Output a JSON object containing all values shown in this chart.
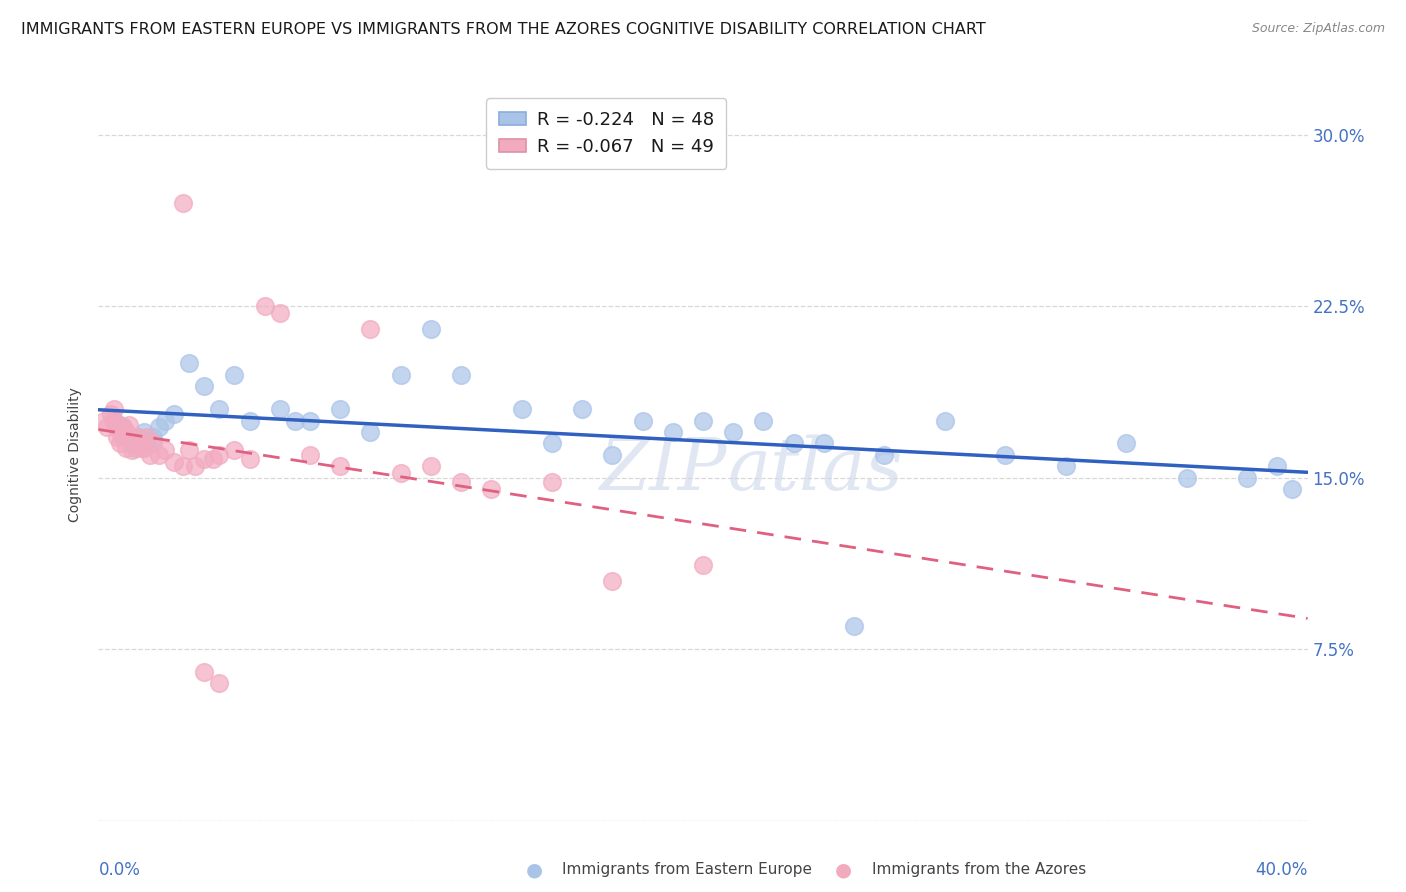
{
  "title": "IMMIGRANTS FROM EASTERN EUROPE VS IMMIGRANTS FROM THE AZORES COGNITIVE DISABILITY CORRELATION CHART",
  "source": "Source: ZipAtlas.com",
  "ylabel": "Cognitive Disability",
  "ytick_vals": [
    0.0,
    0.075,
    0.15,
    0.225,
    0.3
  ],
  "ytick_labels": [
    "",
    "7.5%",
    "15.0%",
    "22.5%",
    "30.0%"
  ],
  "xlim": [
    0.0,
    0.4
  ],
  "ylim": [
    0.0,
    0.32
  ],
  "legend_label_blue": "R = -0.224   N = 48",
  "legend_label_pink": "R = -0.067   N = 49",
  "background_color": "#ffffff",
  "grid_color": "#d8d8d8",
  "tick_color": "#4472c4",
  "title_fontsize": 11.5,
  "axis_label_fontsize": 10,
  "tick_fontsize": 12,
  "scatter_blue": "#aac4e8",
  "scatter_pink": "#f2aabf",
  "line_blue": "#3060c0",
  "line_pink": "#e06080",
  "watermark_color": "#ccd8ea",
  "eastern_europe_x": [
    0.005,
    0.007,
    0.008,
    0.009,
    0.01,
    0.011,
    0.012,
    0.013,
    0.015,
    0.016,
    0.018,
    0.02,
    0.022,
    0.025,
    0.03,
    0.035,
    0.04,
    0.045,
    0.05,
    0.06,
    0.065,
    0.07,
    0.08,
    0.09,
    0.1,
    0.11,
    0.12,
    0.14,
    0.16,
    0.18,
    0.2,
    0.22,
    0.24,
    0.26,
    0.28,
    0.3,
    0.32,
    0.34,
    0.36,
    0.38,
    0.39,
    0.395,
    0.15,
    0.17,
    0.19,
    0.21,
    0.23,
    0.25
  ],
  "eastern_europe_y": [
    0.175,
    0.173,
    0.172,
    0.17,
    0.168,
    0.165,
    0.163,
    0.168,
    0.17,
    0.165,
    0.168,
    0.172,
    0.175,
    0.178,
    0.2,
    0.19,
    0.18,
    0.195,
    0.175,
    0.18,
    0.175,
    0.175,
    0.18,
    0.17,
    0.195,
    0.215,
    0.195,
    0.18,
    0.18,
    0.175,
    0.175,
    0.175,
    0.165,
    0.16,
    0.175,
    0.16,
    0.155,
    0.165,
    0.15,
    0.15,
    0.155,
    0.145,
    0.165,
    0.16,
    0.17,
    0.17,
    0.165,
    0.085
  ],
  "azores_x": [
    0.002,
    0.003,
    0.004,
    0.005,
    0.005,
    0.006,
    0.006,
    0.007,
    0.007,
    0.008,
    0.008,
    0.009,
    0.009,
    0.01,
    0.01,
    0.011,
    0.012,
    0.013,
    0.014,
    0.015,
    0.016,
    0.017,
    0.018,
    0.02,
    0.022,
    0.025,
    0.028,
    0.03,
    0.032,
    0.035,
    0.038,
    0.04,
    0.045,
    0.05,
    0.055,
    0.06,
    0.07,
    0.08,
    0.09,
    0.1,
    0.11,
    0.12,
    0.13,
    0.15,
    0.17,
    0.2,
    0.028,
    0.035,
    0.04
  ],
  "azores_y": [
    0.175,
    0.172,
    0.178,
    0.18,
    0.175,
    0.168,
    0.173,
    0.17,
    0.165,
    0.172,
    0.168,
    0.163,
    0.17,
    0.173,
    0.168,
    0.162,
    0.165,
    0.168,
    0.163,
    0.163,
    0.168,
    0.16,
    0.165,
    0.16,
    0.162,
    0.157,
    0.155,
    0.162,
    0.155,
    0.158,
    0.158,
    0.16,
    0.162,
    0.158,
    0.225,
    0.222,
    0.16,
    0.155,
    0.215,
    0.152,
    0.155,
    0.148,
    0.145,
    0.148,
    0.105,
    0.112,
    0.27,
    0.065,
    0.06
  ]
}
